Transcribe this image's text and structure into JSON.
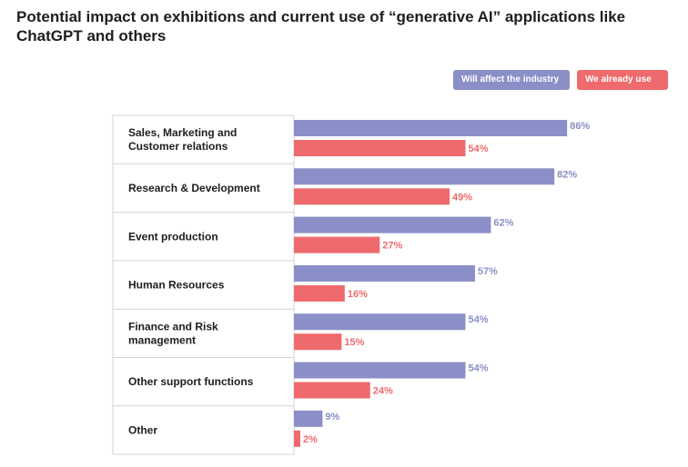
{
  "title": "Potential impact on exhibitions and current use of “generative AI” applications like ChatGPT and others",
  "legend": {
    "affect_label": "Will affect the industry",
    "use_label": "We already use"
  },
  "colors": {
    "affect": "#8a8fc8",
    "use": "#ee6a6c"
  },
  "chart_data": {
    "type": "bar",
    "orientation": "horizontal",
    "title": "Potential impact on exhibitions and current use of “generative AI” applications like ChatGPT and others",
    "categories": [
      [
        "Sales, Marketing and",
        "Customer relations"
      ],
      [
        "Research & Development"
      ],
      [
        "Event production"
      ],
      [
        "Human Resources"
      ],
      [
        "Finance and Risk",
        "management"
      ],
      [
        "Other support functions"
      ],
      [
        "Other"
      ]
    ],
    "series": [
      {
        "name": "Will affect the industry",
        "values": [
          86,
          82,
          62,
          57,
          54,
          54,
          9
        ],
        "labels": [
          "86%",
          "82%",
          "62%",
          "57%",
          "54%",
          "54%",
          "9%"
        ]
      },
      {
        "name": "We already use",
        "values": [
          54,
          49,
          27,
          16,
          15,
          24,
          2
        ],
        "labels": [
          "54%",
          "49%",
          "27%",
          "16%",
          "15%",
          "24%",
          "2%"
        ]
      }
    ],
    "xlim": [
      0,
      100
    ],
    "unit": "%",
    "legend_position": "top-right",
    "grid": false
  }
}
